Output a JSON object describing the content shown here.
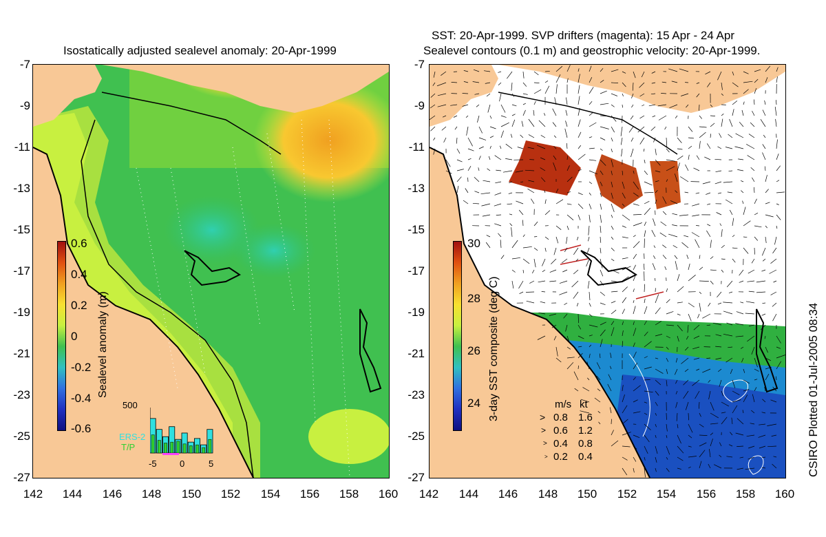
{
  "left_panel": {
    "title": "Isostatically adjusted sealevel anomaly: 20-Apr-1999",
    "colorbar": {
      "label": "Sealevel anomaly (m)",
      "ticks": [
        "0.6",
        "0.4",
        "0.2",
        "0",
        "-0.2",
        "-0.4",
        "-0.6"
      ]
    },
    "histogram": {
      "ymax_label": "500",
      "series_labels": [
        "ERS-2",
        "T/P"
      ],
      "series_colors": [
        "#30e0e0",
        "#30d030"
      ],
      "x_ticks": [
        "-5",
        "0",
        "5"
      ],
      "ers2_counts": [
        380,
        260,
        180,
        290,
        150,
        220,
        120,
        160,
        90,
        260
      ],
      "tp_counts": [
        200,
        140,
        110,
        120,
        130,
        100,
        80,
        90,
        60,
        150
      ]
    }
  },
  "right_panel": {
    "title_line1": "SST: 20-Apr-1999. SVP drifters (magenta): 15 Apr - 24 Apr",
    "title_line2": "Sealevel contours (0.1 m) and geostrophic velocity: 20-Apr-1999.",
    "colorbar": {
      "label": "3-day SST composite (deg C)",
      "ticks": [
        "30",
        "28",
        "26",
        "24"
      ]
    },
    "velocity_legend": {
      "header_ms": "m/s",
      "header_kt": "kt",
      "rows": [
        {
          "ms": "0.8",
          "kt": "1.6"
        },
        {
          "ms": "0.6",
          "kt": "1.2"
        },
        {
          "ms": "0.4",
          "kt": "0.8"
        },
        {
          "ms": "0.2",
          "kt": "0.4"
        }
      ]
    }
  },
  "axes": {
    "y_ticks": [
      "-7",
      "-9",
      "-11",
      "-13",
      "-15",
      "-17",
      "-19",
      "-21",
      "-23",
      "-25",
      "-27"
    ],
    "x_ticks": [
      "142",
      "144",
      "146",
      "148",
      "150",
      "152",
      "154",
      "156",
      "158",
      "160"
    ]
  },
  "credit": "CSIRO Plotted 01-Jul-2005 08:34",
  "colors": {
    "land": "#f8c896",
    "coast": "#000000",
    "slm_green": "#30c040",
    "slm_yellow": "#c8f040",
    "slm_orange": "#f0a020"
  }
}
